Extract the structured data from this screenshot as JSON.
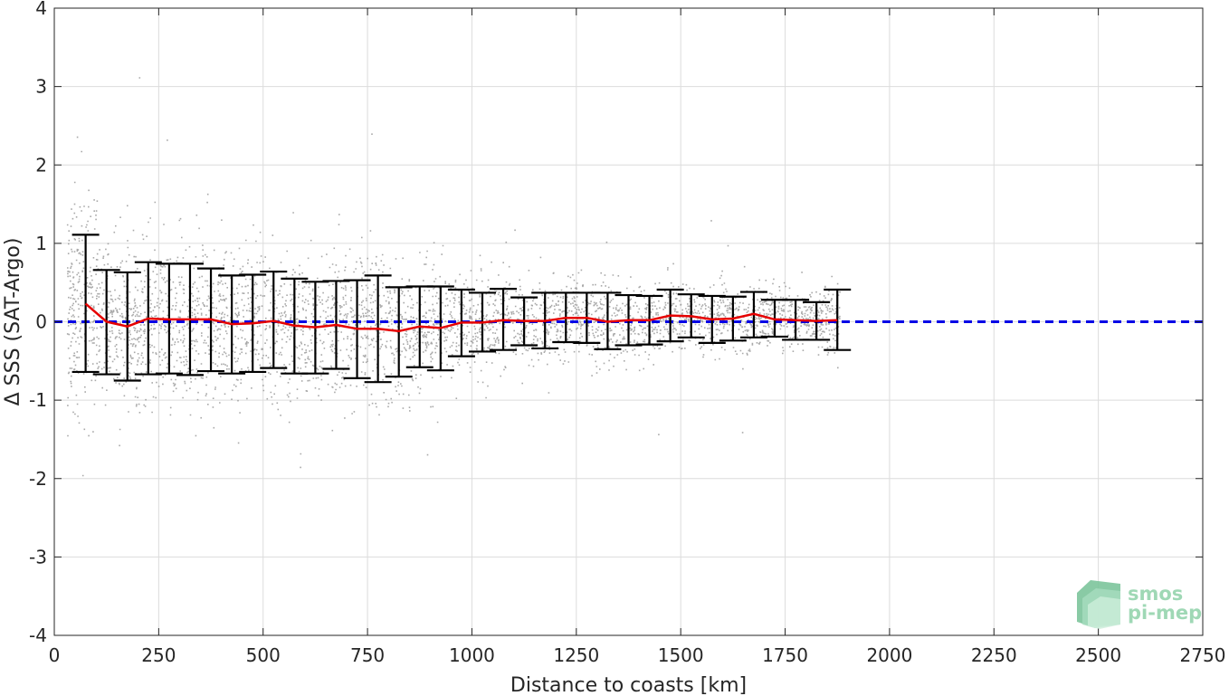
{
  "chart_data": {
    "type": "scatter",
    "xlabel": "Distance to coasts [km]",
    "ylabel": "Δ SSS (SAT-Argo)",
    "xlim": [
      0,
      2750
    ],
    "ylim": [
      -4,
      4
    ],
    "xticks": [
      0,
      250,
      500,
      750,
      1000,
      1250,
      1500,
      1750,
      2000,
      2250,
      2500,
      2750
    ],
    "yticks": [
      -4,
      -3,
      -2,
      -1,
      0,
      1,
      2,
      3,
      4
    ],
    "xtick_labels": [
      "0",
      "250",
      "500",
      "750",
      "1000",
      "1250",
      "1500",
      "1750",
      "2000",
      "2250",
      "2500",
      "2750"
    ],
    "ytick_labels": [
      "-4",
      "-3",
      "-2",
      "-1",
      "0",
      "1",
      "2",
      "3",
      "4"
    ],
    "grid": true,
    "reference_line": {
      "y": 0,
      "style": "dashed",
      "color": "#0000e6"
    },
    "series": [
      {
        "type": "errorbar",
        "color": "#000000",
        "x": [
          75,
          125,
          175,
          225,
          275,
          325,
          375,
          425,
          475,
          525,
          575,
          625,
          675,
          725,
          775,
          825,
          875,
          925,
          975,
          1025,
          1075,
          1125,
          1175,
          1225,
          1275,
          1325,
          1375,
          1425,
          1475,
          1525,
          1575,
          1625,
          1675,
          1725,
          1775,
          1825,
          1875
        ],
        "lower": [
          -0.64,
          -0.67,
          -0.75,
          -0.67,
          -0.66,
          -0.68,
          -0.63,
          -0.66,
          -0.64,
          -0.59,
          -0.66,
          -0.66,
          -0.6,
          -0.72,
          -0.77,
          -0.7,
          -0.58,
          -0.62,
          -0.44,
          -0.38,
          -0.36,
          -0.3,
          -0.34,
          -0.26,
          -0.27,
          -0.35,
          -0.3,
          -0.29,
          -0.25,
          -0.2,
          -0.27,
          -0.24,
          -0.2,
          -0.19,
          -0.23,
          -0.23,
          -0.36
        ],
        "upper": [
          1.11,
          0.66,
          0.63,
          0.76,
          0.74,
          0.74,
          0.68,
          0.59,
          0.6,
          0.64,
          0.55,
          0.51,
          0.52,
          0.53,
          0.59,
          0.44,
          0.45,
          0.45,
          0.41,
          0.37,
          0.42,
          0.31,
          0.37,
          0.37,
          0.37,
          0.37,
          0.34,
          0.33,
          0.41,
          0.35,
          0.33,
          0.32,
          0.38,
          0.28,
          0.28,
          0.25,
          0.41
        ]
      },
      {
        "type": "line",
        "color": "#e60000",
        "x": [
          75,
          125,
          175,
          225,
          275,
          325,
          375,
          425,
          475,
          525,
          575,
          625,
          675,
          725,
          775,
          825,
          875,
          925,
          975,
          1025,
          1075,
          1125,
          1175,
          1225,
          1275,
          1325,
          1375,
          1425,
          1475,
          1525,
          1575,
          1625,
          1675,
          1725,
          1775,
          1825,
          1875
        ],
        "y": [
          0.23,
          0.0,
          -0.06,
          0.04,
          0.03,
          0.03,
          0.03,
          -0.03,
          -0.02,
          0.01,
          -0.05,
          -0.07,
          -0.04,
          -0.09,
          -0.09,
          -0.12,
          -0.06,
          -0.08,
          -0.01,
          -0.01,
          0.02,
          0.01,
          0.01,
          0.05,
          0.05,
          0.0,
          0.02,
          0.02,
          0.08,
          0.07,
          0.03,
          0.04,
          0.1,
          0.03,
          0.02,
          0.01,
          0.02
        ]
      }
    ],
    "scatter_cloud": {
      "color": "#8c8c8c",
      "x_range": [
        30,
        1880
      ],
      "description_spread": "dense gray points, spread decreasing with distance"
    }
  },
  "logo": {
    "line1": "smos",
    "line2": "pi-mep"
  }
}
